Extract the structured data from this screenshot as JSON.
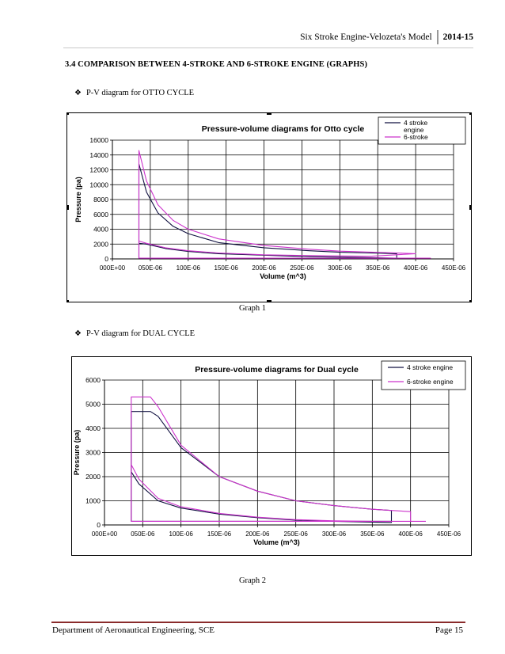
{
  "header": {
    "title": "Six Stroke Engine-Velozeta's Model",
    "year": "2014-15"
  },
  "section_title": "3.4 COMPARISON BETWEEN 4-STROKE AND 6-STROKE ENGINE (GRAPHS)",
  "bullets": [
    "P-V diagram for OTTO CYCLE",
    "P-V diagram for DUAL CYCLE"
  ],
  "captions": [
    "Graph 1",
    "Graph 2"
  ],
  "footer": {
    "left": "Department of Aeronautical Engineering, SCE",
    "right": "Page 15"
  },
  "colors": {
    "series_4_stroke": "#101040",
    "series_6_stroke": "#cc33cc",
    "footer_rule": "#8a2b2b"
  },
  "chart_data": [
    {
      "type": "line",
      "title": "Pressure-volume diagrams for Otto cycle",
      "xlabel": "Volume (m^3)",
      "ylabel": "Pressure (pa)",
      "xlim": [
        0,
        0.00045
      ],
      "ylim": [
        0,
        16000
      ],
      "x_ticks": [
        "000E+00",
        "050E-06",
        "100E-06",
        "150E-06",
        "200E-06",
        "250E-06",
        "300E-06",
        "350E-06",
        "400E-06",
        "450E-06"
      ],
      "y_ticks": [
        "0",
        "2000",
        "4000",
        "6000",
        "8000",
        "10000",
        "12000",
        "14000",
        "16000"
      ],
      "grid": true,
      "legend": "top-right",
      "series": [
        {
          "name": "4 stroke engine",
          "x": [
            3.5e-05,
            3.5e-05,
            4.5e-05,
            6e-05,
            8e-05,
            0.0001,
            0.00014,
            0.0002,
            0.00026,
            0.0003,
            0.00034,
            0.000375,
            0.000375,
            0.00032,
            0.00026,
            0.0002,
            0.00014,
            0.0001,
            7e-05,
            4.5e-05,
            3.5e-05,
            3.5e-05,
            0.000375
          ],
          "y": [
            2000,
            12800,
            9000,
            6200,
            4400,
            3400,
            2200,
            1500,
            1100,
            900,
            800,
            700,
            100,
            200,
            300,
            500,
            700,
            1000,
            1400,
            2000,
            2100,
            100,
            100
          ]
        },
        {
          "name": "6-stroke",
          "x": [
            3.5e-05,
            3.5e-05,
            4.5e-05,
            6e-05,
            8e-05,
            0.0001,
            0.00014,
            0.0002,
            0.00026,
            0.0003,
            0.00036,
            0.0004,
            0.0004,
            0.00034,
            0.00026,
            0.0002,
            0.00014,
            0.0001,
            7e-05,
            4.5e-05,
            3.5e-05,
            3.5e-05,
            0.00042
          ],
          "y": [
            2300,
            14600,
            10500,
            7300,
            5200,
            4000,
            2700,
            1800,
            1300,
            1050,
            850,
            700,
            700,
            350,
            450,
            550,
            800,
            1100,
            1500,
            2100,
            2400,
            100,
            100
          ]
        }
      ]
    },
    {
      "type": "line",
      "title": "Pressure-volume diagrams for Dual cycle",
      "xlabel": "Volume (m^3)",
      "ylabel": "Pressure (pa)",
      "xlim": [
        0,
        0.00045
      ],
      "ylim": [
        0,
        6000
      ],
      "x_ticks": [
        "000E+00",
        "050E-06",
        "100E-06",
        "150E-06",
        "200E-06",
        "250E-06",
        "300E-06",
        "350E-06",
        "400E-06",
        "450E-06"
      ],
      "y_ticks": [
        "0",
        "1000",
        "2000",
        "3000",
        "4000",
        "5000",
        "6000"
      ],
      "grid": true,
      "legend": "top-right",
      "series": [
        {
          "name": "4 stroke engine",
          "x": [
            3.5e-05,
            3.5e-05,
            6e-05,
            7e-05,
            0.0001,
            0.00015,
            0.0002,
            0.00025,
            0.0003,
            0.00035,
            0.000375,
            0.000375,
            0.0003,
            0.00025,
            0.0002,
            0.00015,
            0.0001,
            7e-05,
            4.5e-05,
            3.5e-05,
            3.5e-05,
            0.000375
          ],
          "y": [
            2200,
            4700,
            4700,
            4500,
            3200,
            2000,
            1400,
            1000,
            800,
            650,
            600,
            100,
            150,
            200,
            300,
            450,
            700,
            1000,
            1700,
            2200,
            150,
            150
          ]
        },
        {
          "name": "6-stroke engine",
          "x": [
            3.5e-05,
            3.5e-05,
            6e-05,
            7e-05,
            0.0001,
            0.00015,
            0.0002,
            0.00025,
            0.0003,
            0.00035,
            0.0004,
            0.0004,
            0.00035,
            0.0003,
            0.00025,
            0.0002,
            0.00015,
            0.0001,
            7e-05,
            4.5e-05,
            3.5e-05,
            3.5e-05,
            0.00042
          ],
          "y": [
            2500,
            5300,
            5300,
            4900,
            3300,
            2000,
            1400,
            1000,
            800,
            650,
            550,
            150,
            150,
            170,
            220,
            320,
            480,
            750,
            1100,
            1900,
            2500,
            150,
            150
          ]
        }
      ]
    }
  ]
}
